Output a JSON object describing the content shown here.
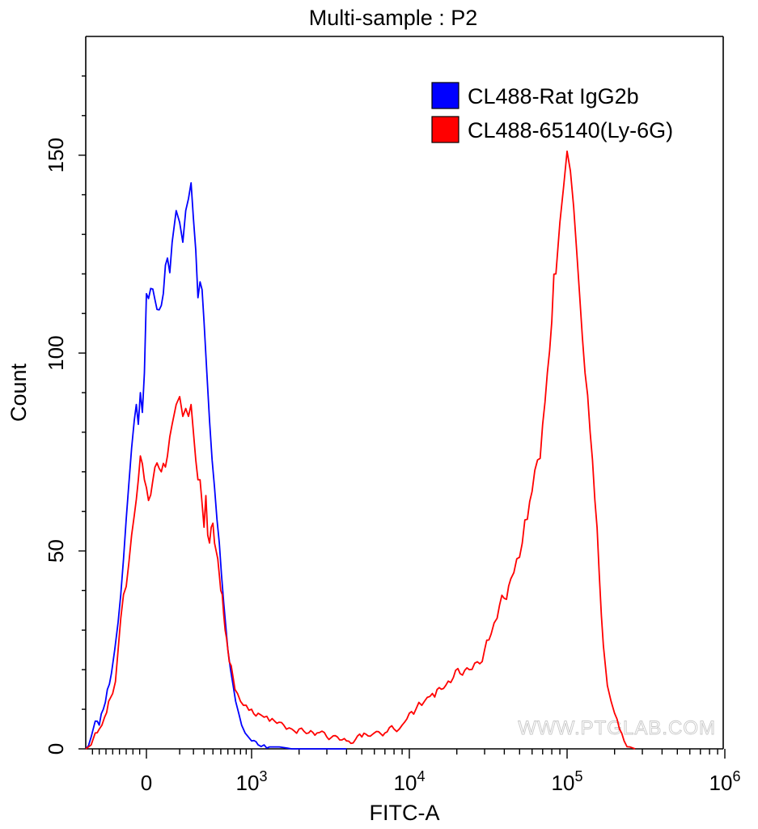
{
  "chart_data": {
    "type": "line",
    "title": "Multi-sample : P2",
    "xlabel": "FITC-A",
    "ylabel": "Count",
    "x_scale": "biexponential",
    "ylim": [
      0,
      180
    ],
    "y_ticks": [
      0,
      50,
      100,
      150
    ],
    "y_tick_labels": [
      "0",
      "50",
      "100",
      "150"
    ],
    "x_ticks": [
      {
        "value": 0,
        "base": "0",
        "exp": ""
      },
      {
        "value": 1000,
        "base": "10",
        "exp": "3"
      },
      {
        "value": 10000,
        "base": "10",
        "exp": "4"
      },
      {
        "value": 100000,
        "base": "10",
        "exp": "5"
      },
      {
        "value": 1000000,
        "base": "10",
        "exp": "6"
      }
    ],
    "legend_position": "top-right",
    "watermark": "WWW.PTGLAB.COM",
    "series": [
      {
        "name": "CL488-Rat IgG2b",
        "color": "#0000ff",
        "points": [
          [
            -900,
            0
          ],
          [
            -820,
            3
          ],
          [
            -760,
            7
          ],
          [
            -700,
            6
          ],
          [
            -640,
            10
          ],
          [
            -580,
            15
          ],
          [
            -520,
            19
          ],
          [
            -470,
            25
          ],
          [
            -420,
            32
          ],
          [
            -380,
            39
          ],
          [
            -340,
            48
          ],
          [
            -300,
            58
          ],
          [
            -260,
            67
          ],
          [
            -220,
            76
          ],
          [
            -180,
            83
          ],
          [
            -150,
            87
          ],
          [
            -120,
            82
          ],
          [
            -90,
            90
          ],
          [
            -60,
            85
          ],
          [
            -30,
            95
          ],
          [
            0,
            115
          ],
          [
            20,
            112
          ],
          [
            40,
            124
          ],
          [
            60,
            128
          ],
          [
            80,
            136
          ],
          [
            100,
            133
          ],
          [
            120,
            128
          ],
          [
            140,
            136
          ],
          [
            160,
            139
          ],
          [
            180,
            143
          ],
          [
            200,
            134
          ],
          [
            220,
            126
          ],
          [
            240,
            114
          ],
          [
            260,
            118
          ],
          [
            280,
            116
          ],
          [
            300,
            108
          ],
          [
            330,
            95
          ],
          [
            360,
            83
          ],
          [
            390,
            73
          ],
          [
            420,
            66
          ],
          [
            450,
            58
          ],
          [
            480,
            52
          ],
          [
            510,
            44
          ],
          [
            540,
            37
          ],
          [
            570,
            31
          ],
          [
            600,
            25
          ],
          [
            640,
            20
          ],
          [
            680,
            16
          ],
          [
            720,
            12
          ],
          [
            770,
            9
          ],
          [
            820,
            6
          ],
          [
            880,
            4
          ],
          [
            940,
            3
          ],
          [
            1000,
            2
          ],
          [
            1100,
            1
          ],
          [
            1200,
            1
          ],
          [
            1300,
            0.5
          ],
          [
            1500,
            0.5
          ],
          [
            1800,
            0
          ],
          [
            4000,
            0
          ]
        ]
      },
      {
        "name": "CL488-65140(Ly-6G)",
        "color": "#ff0000",
        "points": [
          [
            -900,
            0
          ],
          [
            -820,
            1
          ],
          [
            -760,
            4
          ],
          [
            -700,
            5
          ],
          [
            -620,
            8
          ],
          [
            -560,
            12
          ],
          [
            -500,
            14
          ],
          [
            -460,
            17
          ],
          [
            -420,
            25
          ],
          [
            -380,
            33
          ],
          [
            -340,
            39
          ],
          [
            -300,
            41
          ],
          [
            -260,
            47
          ],
          [
            -220,
            54
          ],
          [
            -180,
            59
          ],
          [
            -150,
            63
          ],
          [
            -120,
            68
          ],
          [
            -90,
            74
          ],
          [
            -60,
            72
          ],
          [
            -30,
            68
          ],
          [
            0,
            66
          ],
          [
            20,
            70
          ],
          [
            40,
            74
          ],
          [
            60,
            82
          ],
          [
            80,
            87
          ],
          [
            100,
            89
          ],
          [
            120,
            84
          ],
          [
            140,
            86
          ],
          [
            160,
            84
          ],
          [
            180,
            87
          ],
          [
            200,
            80
          ],
          [
            220,
            73
          ],
          [
            240,
            68
          ],
          [
            260,
            68
          ],
          [
            280,
            62
          ],
          [
            300,
            56
          ],
          [
            320,
            64
          ],
          [
            340,
            54
          ],
          [
            360,
            52
          ],
          [
            380,
            56
          ],
          [
            400,
            57
          ],
          [
            420,
            52
          ],
          [
            440,
            50
          ],
          [
            460,
            48
          ],
          [
            480,
            44
          ],
          [
            500,
            40
          ],
          [
            520,
            39
          ],
          [
            540,
            34
          ],
          [
            560,
            30
          ],
          [
            580,
            28
          ],
          [
            600,
            25
          ],
          [
            620,
            22
          ],
          [
            650,
            21
          ],
          [
            680,
            18
          ],
          [
            710,
            15
          ],
          [
            750,
            14
          ],
          [
            800,
            12
          ],
          [
            850,
            11
          ],
          [
            900,
            11
          ],
          [
            1000,
            10
          ],
          [
            1100,
            9
          ],
          [
            1200,
            8
          ],
          [
            1300,
            7
          ],
          [
            1400,
            7
          ],
          [
            1600,
            6
          ],
          [
            1800,
            5
          ],
          [
            2000,
            5
          ],
          [
            2300,
            4
          ],
          [
            2600,
            4
          ],
          [
            3000,
            3
          ],
          [
            3500,
            3
          ],
          [
            4000,
            2
          ],
          [
            5000,
            3
          ],
          [
            6000,
            4
          ],
          [
            7000,
            4
          ],
          [
            8000,
            5
          ],
          [
            9000,
            6
          ],
          [
            10000,
            9
          ],
          [
            11000,
            10
          ],
          [
            12000,
            11
          ],
          [
            13000,
            13
          ],
          [
            14000,
            14
          ],
          [
            15000,
            15
          ],
          [
            17000,
            16
          ],
          [
            19000,
            18
          ],
          [
            21000,
            19
          ],
          [
            24000,
            20
          ],
          [
            27000,
            22
          ],
          [
            30000,
            25
          ],
          [
            33000,
            29
          ],
          [
            36000,
            33
          ],
          [
            40000,
            38
          ],
          [
            44000,
            43
          ],
          [
            48000,
            48
          ],
          [
            52000,
            52
          ],
          [
            56000,
            58
          ],
          [
            60000,
            65
          ],
          [
            65000,
            73
          ],
          [
            70000,
            82
          ],
          [
            75000,
            95
          ],
          [
            80000,
            108
          ],
          [
            85000,
            120
          ],
          [
            90000,
            133
          ],
          [
            95000,
            142
          ],
          [
            100000,
            151
          ],
          [
            105000,
            146
          ],
          [
            110000,
            137
          ],
          [
            115000,
            126
          ],
          [
            120000,
            115
          ],
          [
            125000,
            104
          ],
          [
            130000,
            95
          ],
          [
            140000,
            80
          ],
          [
            150000,
            63
          ],
          [
            160000,
            44
          ],
          [
            170000,
            26
          ],
          [
            180000,
            16
          ],
          [
            190000,
            12
          ],
          [
            200000,
            9
          ],
          [
            215000,
            5
          ],
          [
            230000,
            2
          ],
          [
            250000,
            0.5
          ],
          [
            270000,
            0
          ]
        ]
      }
    ]
  }
}
